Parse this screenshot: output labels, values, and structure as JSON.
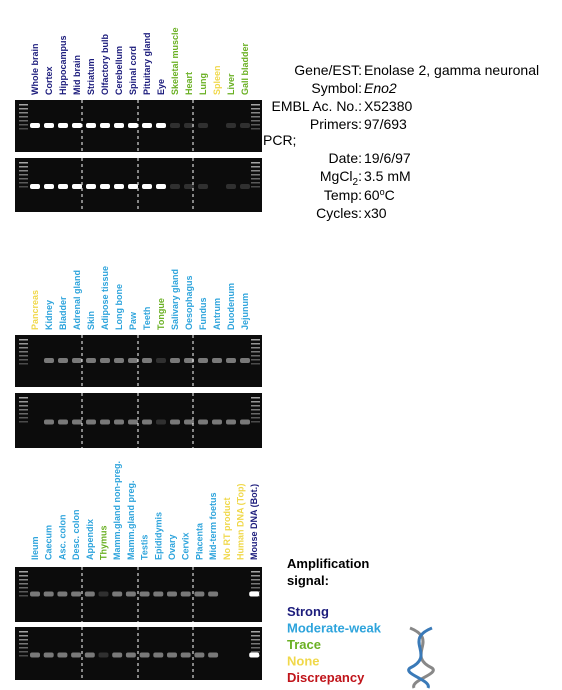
{
  "panels": [
    {
      "lanes": [
        {
          "label": "Whole brain",
          "color": "#1c1c7c"
        },
        {
          "label": "Cortex",
          "color": "#1c1c7c"
        },
        {
          "label": "Hippocampus",
          "color": "#1c1c7c"
        },
        {
          "label": "Mid brain",
          "color": "#1c1c7c"
        },
        {
          "label": "Striatum",
          "color": "#1c1c7c"
        },
        {
          "label": "Olfactory bulb",
          "color": "#1c1c7c"
        },
        {
          "label": "Cerebellum",
          "color": "#1c1c7c"
        },
        {
          "label": "Spinal cord",
          "color": "#1c1c7c"
        },
        {
          "label": "Pituitary gland",
          "color": "#1c1c7c"
        },
        {
          "label": "Eye",
          "color": "#1c1c7c"
        },
        {
          "label": "Skeletal muscle",
          "color": "#6ab023"
        },
        {
          "label": "Heart",
          "color": "#6ab023"
        },
        {
          "label": "Lung",
          "color": "#6ab023"
        },
        {
          "label": "Spleen",
          "color": "#f0d84a"
        },
        {
          "label": "Liver",
          "color": "#6ab023"
        },
        {
          "label": "Gall bladder",
          "color": "#6ab023"
        }
      ]
    },
    {
      "lanes": [
        {
          "label": "Pancreas",
          "color": "#f0d84a"
        },
        {
          "label": "Kidney",
          "color": "#2ea4dc"
        },
        {
          "label": "Bladder",
          "color": "#2ea4dc"
        },
        {
          "label": "Adrenal gland",
          "color": "#2ea4dc"
        },
        {
          "label": "Skin",
          "color": "#2ea4dc"
        },
        {
          "label": "Adipose tissue",
          "color": "#2ea4dc"
        },
        {
          "label": "Long bone",
          "color": "#2ea4dc"
        },
        {
          "label": "Paw",
          "color": "#2ea4dc"
        },
        {
          "label": "Teeth",
          "color": "#2ea4dc"
        },
        {
          "label": "Tongue",
          "color": "#6ab023"
        },
        {
          "label": "Salivary gland",
          "color": "#2ea4dc"
        },
        {
          "label": "Oesophagus",
          "color": "#2ea4dc"
        },
        {
          "label": "Fundus",
          "color": "#2ea4dc"
        },
        {
          "label": "Antrum",
          "color": "#2ea4dc"
        },
        {
          "label": "Duodenum",
          "color": "#2ea4dc"
        },
        {
          "label": "Jejunum",
          "color": "#2ea4dc"
        }
      ]
    },
    {
      "lanes": [
        {
          "label": "Ileum",
          "color": "#2ea4dc"
        },
        {
          "label": "Caecum",
          "color": "#2ea4dc"
        },
        {
          "label": "Asc. colon",
          "color": "#2ea4dc"
        },
        {
          "label": "Desc. colon",
          "color": "#2ea4dc"
        },
        {
          "label": "Appendix",
          "color": "#2ea4dc"
        },
        {
          "label": "Thymus",
          "color": "#6ab023"
        },
        {
          "label": "Mamm.gland non-preg.",
          "color": "#2ea4dc"
        },
        {
          "label": "Mamm.gland preg.",
          "color": "#2ea4dc"
        },
        {
          "label": "Testis",
          "color": "#2ea4dc"
        },
        {
          "label": "Epididymis",
          "color": "#2ea4dc"
        },
        {
          "label": "Ovary",
          "color": "#2ea4dc"
        },
        {
          "label": "Cervix",
          "color": "#2ea4dc"
        },
        {
          "label": "Placenta",
          "color": "#2ea4dc"
        },
        {
          "label": "Mid-term foetus",
          "color": "#2ea4dc"
        },
        {
          "label": "No RT product",
          "color": "#f0d84a"
        },
        {
          "label": "Human DNA (Top)",
          "color": "#f0d84a"
        },
        {
          "label": "Mouse DNA (Bot.)",
          "color": "#1c1c7c"
        }
      ]
    }
  ],
  "info": [
    {
      "label": "Gene/EST:",
      "value": "Enolase 2, gamma neuronal"
    },
    {
      "label": "Symbol:",
      "value": "Eno2"
    },
    {
      "label": "EMBL Ac. No.:",
      "value": "X52380"
    },
    {
      "label": "Primers:",
      "value": "97/693"
    },
    {
      "label": "PCR;"
    },
    {
      "label": "Date:",
      "value": "19/6/97"
    },
    {
      "label": "MgCl",
      "sub": "2",
      "suffix": ":",
      "value": "3.5 mM"
    },
    {
      "label": "Temp:",
      "value": "60",
      "sup": "o",
      "unit": "C"
    },
    {
      "label": "Cycles:",
      "value": "x30"
    }
  ],
  "legend": {
    "title": "Amplification signal:",
    "items": [
      {
        "text": "Strong",
        "color": "#1c1c7c"
      },
      {
        "text": "Moderate-weak",
        "color": "#2ea4dc"
      },
      {
        "text": "Trace",
        "color": "#6ab023"
      },
      {
        "text": "None",
        "color": "#f0d84a"
      },
      {
        "text": "Discrepancy",
        "color": "#c0141a"
      }
    ]
  }
}
